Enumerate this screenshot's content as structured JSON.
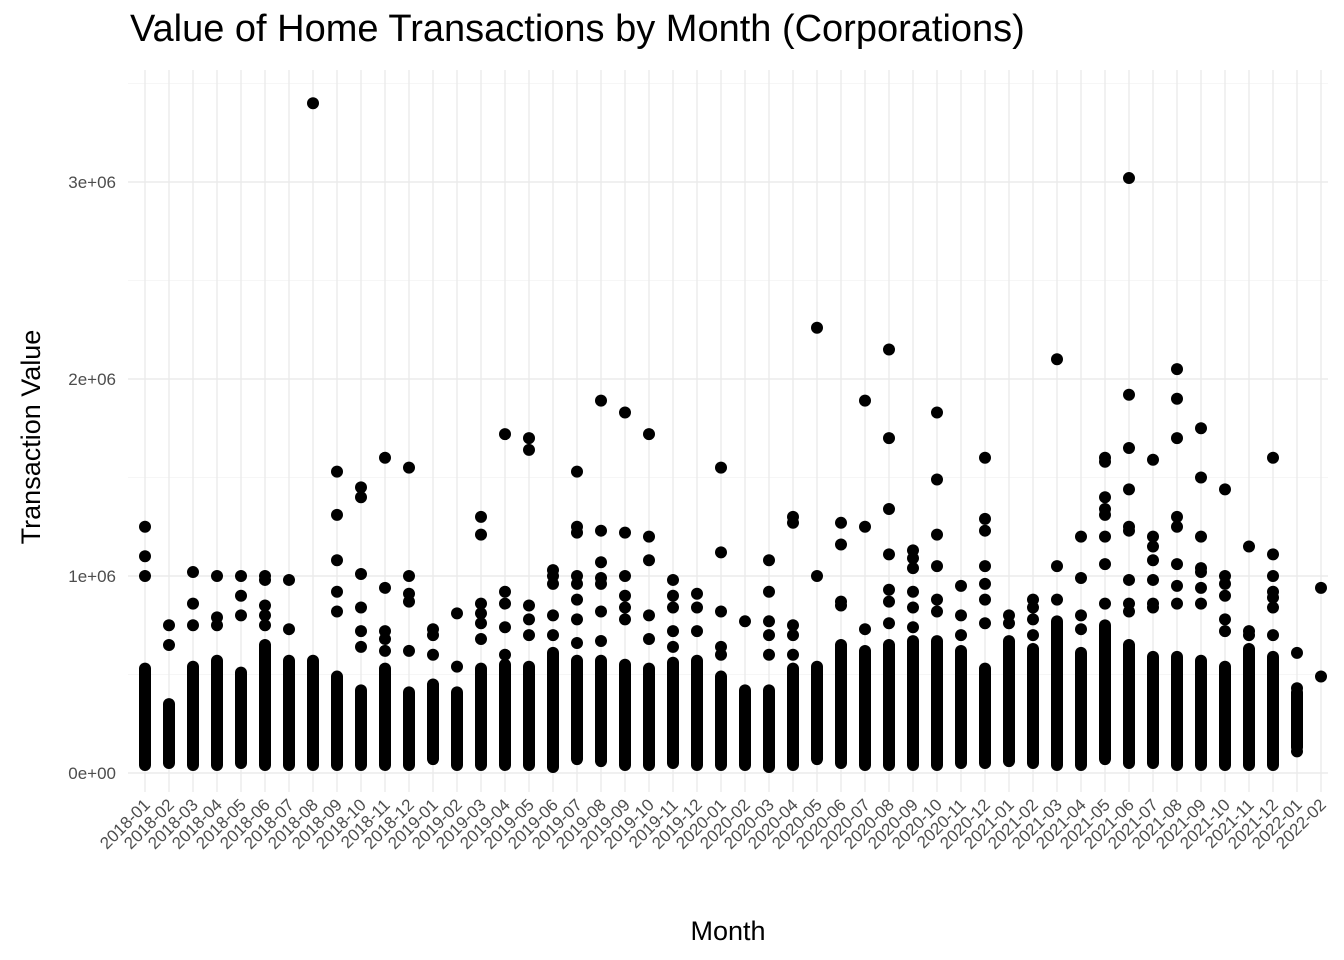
{
  "chart_data": {
    "type": "scatter",
    "title": "Value of Home Transactions by Month (Corporations)",
    "xlabel": "Month",
    "ylabel": "Transaction Value",
    "ylim": [
      -150000,
      3500000
    ],
    "y_ticks": [
      0,
      1000000,
      2000000,
      3000000
    ],
    "y_tick_labels": [
      "0e+00",
      "1e+06",
      "2e+06",
      "3e+06"
    ],
    "grid": true,
    "point_color": "#000000",
    "categories": [
      "2018-01",
      "2018-02",
      "2018-03",
      "2018-04",
      "2018-05",
      "2018-06",
      "2018-07",
      "2018-08",
      "2018-09",
      "2018-10",
      "2018-11",
      "2018-12",
      "2019-01",
      "2019-02",
      "2019-03",
      "2019-04",
      "2019-05",
      "2019-06",
      "2019-07",
      "2019-08",
      "2019-09",
      "2019-10",
      "2019-11",
      "2019-12",
      "2020-01",
      "2020-02",
      "2020-03",
      "2020-04",
      "2020-05",
      "2020-06",
      "2020-07",
      "2020-08",
      "2020-09",
      "2020-10",
      "2020-11",
      "2020-12",
      "2021-01",
      "2021-02",
      "2021-03",
      "2021-04",
      "2021-05",
      "2021-06",
      "2021-07",
      "2021-08",
      "2021-09",
      "2021-10",
      "2021-11",
      "2021-12",
      "2022-01",
      "2022-02"
    ],
    "dense_range": [
      [
        10000,
        560000
      ],
      [
        20000,
        380000
      ],
      [
        10000,
        570000
      ],
      [
        10000,
        600000
      ],
      [
        20000,
        540000
      ],
      [
        10000,
        680000
      ],
      [
        10000,
        600000
      ],
      [
        10000,
        600000
      ],
      [
        10000,
        520000
      ],
      [
        10000,
        450000
      ],
      [
        10000,
        560000
      ],
      [
        10000,
        440000
      ],
      [
        40000,
        480000
      ],
      [
        10000,
        440000
      ],
      [
        10000,
        560000
      ],
      [
        10000,
        580000
      ],
      [
        10000,
        570000
      ],
      [
        0,
        640000
      ],
      [
        40000,
        600000
      ],
      [
        30000,
        600000
      ],
      [
        10000,
        580000
      ],
      [
        10000,
        560000
      ],
      [
        20000,
        590000
      ],
      [
        10000,
        600000
      ],
      [
        10000,
        520000
      ],
      [
        10000,
        450000
      ],
      [
        0,
        450000
      ],
      [
        10000,
        560000
      ],
      [
        40000,
        570000
      ],
      [
        20000,
        680000
      ],
      [
        10000,
        650000
      ],
      [
        10000,
        680000
      ],
      [
        10000,
        700000
      ],
      [
        10000,
        700000
      ],
      [
        20000,
        650000
      ],
      [
        20000,
        560000
      ],
      [
        30000,
        700000
      ],
      [
        20000,
        660000
      ],
      [
        10000,
        800000
      ],
      [
        10000,
        640000
      ],
      [
        40000,
        780000
      ],
      [
        20000,
        680000
      ],
      [
        20000,
        620000
      ],
      [
        10000,
        620000
      ],
      [
        10000,
        600000
      ],
      [
        10000,
        570000
      ],
      [
        10000,
        660000
      ],
      [
        10000,
        620000
      ],
      [
        100000,
        440000
      ],
      [
        490000,
        490000
      ]
    ],
    "outliers": [
      [
        1250000,
        1100000,
        1000000
      ],
      [
        750000,
        650000
      ],
      [
        1020000,
        860000,
        750000
      ],
      [
        1000000,
        790000,
        750000
      ],
      [
        1000000,
        900000,
        800000
      ],
      [
        1000000,
        980000,
        850000,
        800000,
        750000
      ],
      [
        980000,
        730000
      ],
      [
        3400000
      ],
      [
        1530000,
        1310000,
        1080000,
        920000,
        820000
      ],
      [
        1450000,
        1400000,
        1010000,
        840000,
        720000,
        640000
      ],
      [
        1600000,
        940000,
        720000,
        680000,
        620000
      ],
      [
        1550000,
        1000000,
        910000,
        870000,
        620000
      ],
      [
        730000,
        700000,
        600000
      ],
      [
        810000,
        540000
      ],
      [
        1300000,
        1210000,
        860000,
        810000,
        760000,
        680000
      ],
      [
        1720000,
        920000,
        860000,
        740000,
        600000
      ],
      [
        1700000,
        1640000,
        850000,
        780000,
        700000
      ],
      [
        1030000,
        1000000,
        960000,
        800000,
        700000
      ],
      [
        1530000,
        1250000,
        1220000,
        1000000,
        960000,
        880000,
        780000,
        660000
      ],
      [
        1890000,
        1230000,
        1070000,
        990000,
        960000,
        820000,
        670000
      ],
      [
        1830000,
        1220000,
        1000000,
        900000,
        840000,
        780000
      ],
      [
        1720000,
        1200000,
        1080000,
        800000,
        680000
      ],
      [
        980000,
        900000,
        840000,
        720000,
        640000
      ],
      [
        910000,
        840000,
        720000
      ],
      [
        1550000,
        1120000,
        820000,
        640000,
        600000
      ],
      [
        770000
      ],
      [
        1080000,
        920000,
        770000,
        700000,
        600000
      ],
      [
        1300000,
        1270000,
        750000,
        700000,
        600000
      ],
      [
        2260000,
        1000000
      ],
      [
        1270000,
        1160000,
        870000,
        850000
      ],
      [
        1890000,
        1250000,
        730000
      ],
      [
        2150000,
        1700000,
        1340000,
        1110000,
        930000,
        870000,
        760000
      ],
      [
        1130000,
        1090000,
        1040000,
        920000,
        840000,
        740000
      ],
      [
        1830000,
        1490000,
        1210000,
        1050000,
        880000,
        820000
      ],
      [
        950000,
        800000,
        700000
      ],
      [
        1600000,
        1290000,
        1230000,
        1050000,
        960000,
        880000,
        760000
      ],
      [
        800000,
        760000
      ],
      [
        880000,
        840000,
        780000,
        700000
      ],
      [
        2100000,
        1050000,
        880000
      ],
      [
        1200000,
        990000,
        800000,
        730000
      ],
      [
        1600000,
        1580000,
        1400000,
        1340000,
        1310000,
        1200000,
        1060000,
        860000
      ],
      [
        3020000,
        1920000,
        1650000,
        1440000,
        1250000,
        1230000,
        980000,
        860000,
        820000
      ],
      [
        1590000,
        1200000,
        1150000,
        1080000,
        980000,
        860000,
        840000
      ],
      [
        2050000,
        1900000,
        1700000,
        1300000,
        1250000,
        1060000,
        950000,
        860000
      ],
      [
        1750000,
        1500000,
        1200000,
        1040000,
        1020000,
        940000,
        860000
      ],
      [
        1440000,
        1000000,
        960000,
        900000,
        780000,
        720000
      ],
      [
        1150000,
        720000,
        700000
      ],
      [
        1600000,
        1110000,
        1000000,
        920000,
        890000,
        840000,
        700000
      ],
      [
        610000,
        430000,
        320000,
        270000,
        250000,
        110000
      ],
      [
        940000
      ]
    ]
  }
}
